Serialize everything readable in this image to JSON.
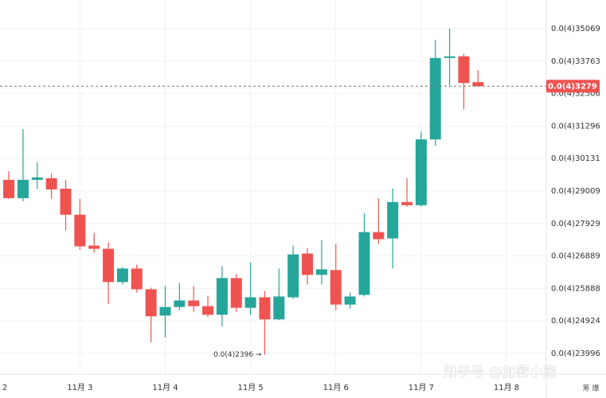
{
  "chart_data": {
    "type": "candlestick",
    "log_scale": true,
    "grid": true,
    "ylim": [
      2.3423e-05,
      3.6265e-05
    ],
    "yticks": [
      {
        "value": 2.3996e-05,
        "label": "0.0(4)23996"
      },
      {
        "value": 2.4924e-05,
        "label": "0.0(4)24924"
      },
      {
        "value": 2.5888e-05,
        "label": "0.0(4)25888"
      },
      {
        "value": 2.6889e-05,
        "label": "0.0(4)26889"
      },
      {
        "value": 2.7929e-05,
        "label": "0.0(4)27929"
      },
      {
        "value": 2.9009e-05,
        "label": "0.0(4)29009"
      },
      {
        "value": 3.0131e-05,
        "label": "0.0(4)30131"
      },
      {
        "value": 3.1296e-05,
        "label": "0.0(4)31296"
      },
      {
        "value": 3.2506e-05,
        "label": "0.0(4)32506"
      },
      {
        "value": 3.3763e-05,
        "label": "0.0(4)33763"
      },
      {
        "value": 3.5069e-05,
        "label": "0.0(4)35069"
      }
    ],
    "xlim": [
      -0.62,
      37.8
    ],
    "xticks": [
      {
        "value": -1,
        "label": "2"
      },
      {
        "value": 5,
        "label": "11月 3"
      },
      {
        "value": 11,
        "label": "11月 4"
      },
      {
        "value": 17,
        "label": "11月 5"
      },
      {
        "value": 23,
        "label": "11月 6"
      },
      {
        "value": 29,
        "label": "11月 7"
      },
      {
        "value": 35,
        "label": "11月 8"
      }
    ],
    "series": [
      {
        "up_color": "#26a69a",
        "down_color": "#ef5350",
        "open": [
          2.9393e-05,
          2.877e-05,
          2.9393e-05,
          2.9447e-05,
          2.9091e-05,
          2.8218e-05,
          2.7219e-05,
          2.7117e-05,
          2.6083e-05,
          2.6498e-05,
          2.5864e-05,
          2.5082e-05,
          2.5334e-05,
          2.5527e-05,
          2.5358e-05,
          2.5105e-05,
          2.6205e-05,
          2.531e-05,
          2.5623e-05,
          2.4969e-05,
          2.5623e-05,
          2.6966e-05,
          2.6303e-05,
          2.645e-05,
          2.5406e-05,
          2.5695e-05,
          2.7651e-05,
          2.7448e-05,
          2.8639e-05,
          2.8534e-05,
          3.0813e-05,
          3.3891e-05,
          3.3955e-05,
          3.2946e-05
        ],
        "high": [
          2.9694e-05,
          3.1182e-05,
          2.9995e-05,
          2.9612e-05,
          2.9393e-05,
          2.8744e-05,
          2.7626e-05,
          2.7321e-05,
          2.6547e-05,
          2.662e-05,
          2.5912e-05,
          2.5961e-05,
          2.6059e-05,
          2.5961e-05,
          2.5671e-05,
          2.6571e-05,
          2.6327e-05,
          2.6694e-05,
          2.5816e-05,
          2.6498e-05,
          2.7219e-05,
          2.7143e-05,
          2.7397e-05,
          2.727e-05,
          2.5768e-05,
          2.8271e-05,
          2.877e-05,
          2.9091e-05,
          2.9447e-05,
          3.1097e-05,
          3.4622e-05,
          3.5069e-05,
          3.4051e-05,
          3.3417e-05
        ],
        "low": [
          2.8744e-05,
          2.8665e-05,
          2.9091e-05,
          2.8744e-05,
          2.7702e-05,
          2.7092e-05,
          2.6991e-05,
          2.543e-05,
          2.601e-05,
          2.5768e-05,
          2.4312e-05,
          2.4448e-05,
          2.5238e-05,
          2.519e-05,
          2.5037e-05,
          2.4766e-05,
          2.519e-05,
          2.5105e-05,
          2.396e-05,
          2.4947e-05,
          2.5575e-05,
          2.601e-05,
          2.601e-05,
          2.5238e-05,
          2.5286e-05,
          2.5647e-05,
          2.727e-05,
          2.6498e-05,
          2.8481e-05,
          2.8481e-05,
          3.0585e-05,
          3.282e-05,
          3.1916e-05,
          3.279e-05
        ],
        "close": [
          2.877e-05,
          2.9393e-05,
          2.9475e-05,
          2.9064e-05,
          2.8218e-05,
          2.7194e-05,
          2.7117e-05,
          2.6083e-05,
          2.6498e-05,
          2.5864e-05,
          2.506e-05,
          2.5334e-05,
          2.5527e-05,
          2.5358e-05,
          2.5105e-05,
          2.6205e-05,
          2.531e-05,
          2.5623e-05,
          2.4969e-05,
          2.5647e-05,
          2.694e-05,
          2.6303e-05,
          2.6474e-05,
          2.5406e-05,
          2.5647e-05,
          2.7651e-05,
          2.7422e-05,
          2.8639e-05,
          2.8534e-05,
          3.0813e-05,
          3.3891e-05,
          3.3955e-05,
          3.2914e-05,
          3.279e-05
        ]
      }
    ],
    "current_price": {
      "value": 3.279e-05,
      "label": "0.0(4)3279"
    },
    "low_marker": {
      "index": 18,
      "value": 2.396e-05,
      "label": "0.0(4)2396 →"
    },
    "watermark": "知乎号 @加密小熊",
    "corner_text": "筹 爆"
  }
}
